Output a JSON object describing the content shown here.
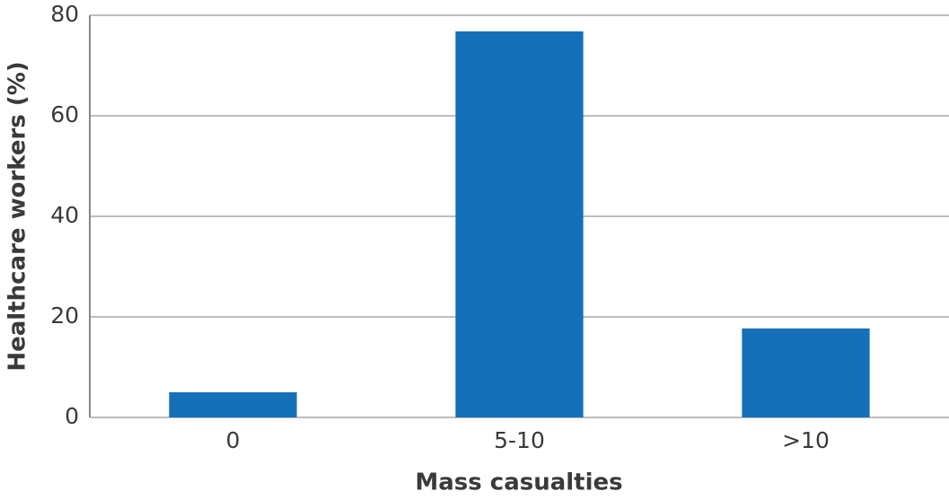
{
  "chart_data": {
    "type": "bar",
    "x_label": "Mass casualties",
    "y_label": "Healthcare workers (%)",
    "categories": [
      "0",
      "5-10",
      ">10"
    ],
    "values": [
      5,
      76.8,
      17.7
    ],
    "color": "#1570b8",
    "ylim": [
      0,
      80
    ],
    "yticks": [
      0,
      20,
      40,
      60,
      80
    ],
    "grid": true
  }
}
